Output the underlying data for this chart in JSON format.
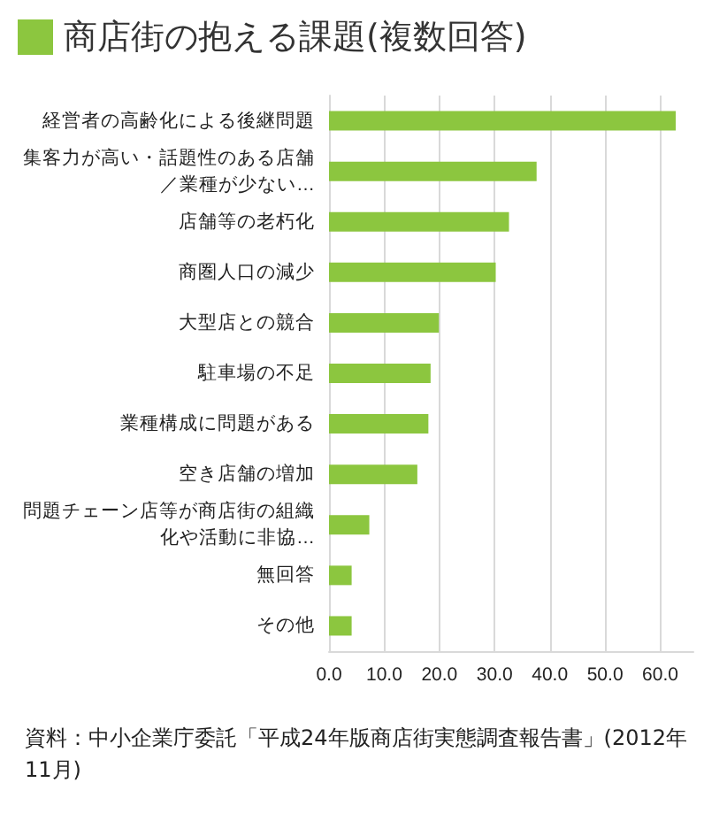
{
  "chart_data": {
    "type": "bar",
    "orientation": "horizontal",
    "title": "商店街の抱える課題(複数回答)",
    "categories": [
      "経営者の高齢化による後継問題",
      "集客力が高い・話題性のある店舗／業種が少ない…",
      "店舗等の老朽化",
      "商圏人口の減少",
      "大型店との競合",
      "駐車場の不足",
      "業種構成に問題がある",
      "空き店舗の増加",
      "問題チェーン店等が商店街の組織化や活動に非協…",
      "無回答",
      "その他"
    ],
    "values": [
      62.8,
      37.6,
      32.6,
      30.2,
      19.9,
      18.4,
      18.0,
      16.0,
      7.3,
      4.1,
      4.1
    ],
    "color": "#8cc63f",
    "xlim": [
      0,
      66
    ],
    "xticks": [
      {
        "value": 0,
        "label": "0.0"
      },
      {
        "value": 10,
        "label": "10.0"
      },
      {
        "value": 20,
        "label": "20.0"
      },
      {
        "value": 30,
        "label": "30.0"
      },
      {
        "value": 40,
        "label": "40.0"
      },
      {
        "value": 50,
        "label": "50.0"
      },
      {
        "value": 60,
        "label": "60.0"
      }
    ],
    "grid": "x",
    "annotations": [
      "資料：中小企業庁委託「平成24年版商店街実態調査報告書」(2012年11月)"
    ]
  }
}
